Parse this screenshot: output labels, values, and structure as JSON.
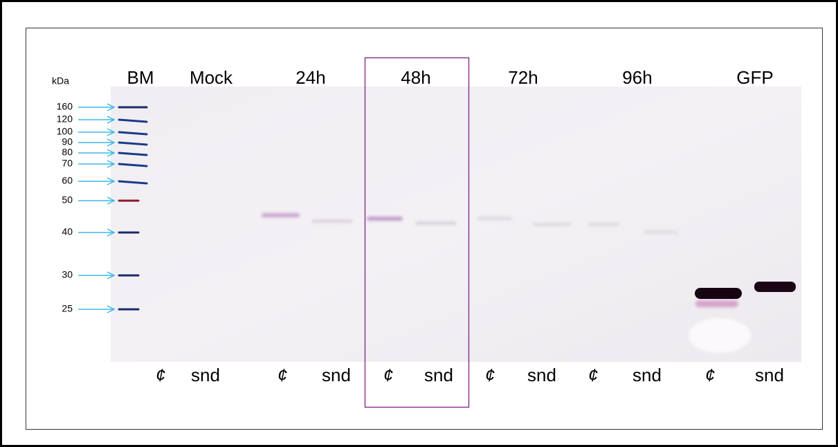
{
  "marker_unit": "kDa",
  "markers": [
    160,
    120,
    100,
    90,
    80,
    70,
    60,
    50,
    40,
    30,
    25
  ],
  "lane_headers": [
    "BM",
    "Mock",
    "24h",
    "48h",
    "72h",
    "96h",
    "GFP"
  ],
  "lane_labels": [
    "¢",
    "snd",
    "¢",
    "snd",
    "¢",
    "snd",
    "¢",
    "snd",
    "¢",
    "snd",
    "¢",
    "snd"
  ]
}
